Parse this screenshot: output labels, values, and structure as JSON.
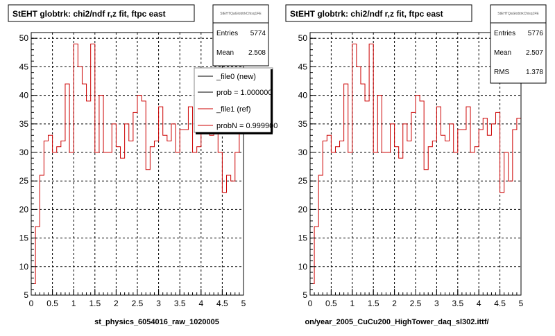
{
  "colors": {
    "axes": "#000000",
    "grid": "#000000",
    "new_hist": "#000000",
    "ref_hist": "#cc0000",
    "background": "#ffffff"
  },
  "left_panel": {
    "title": "StEHT globtrk: chi2/ndf r,z fit, ftpc east",
    "stats": {
      "name": "StEHTQaGlobtrkChisq1FE",
      "rows": [
        {
          "label": "Entries",
          "value": "5774"
        },
        {
          "label": "Mean",
          "value": "2.508"
        }
      ]
    },
    "legend": [
      {
        "label": "_file0 (new)",
        "color": "#000000"
      },
      {
        "label": "prob = 1.000000",
        "color": "#000000"
      },
      {
        "label": "_file1 (ref)",
        "color": "#cc0000"
      },
      {
        "label": "probN = 0.999900",
        "color": "#cc0000"
      }
    ],
    "footer": "st_physics_6054016_raw_1020005"
  },
  "right_panel": {
    "title": "StEHT globtrk: chi2/ndf r,z fit, ftpc east",
    "stats": {
      "name": "StEHTQaGlobtrkChisq1FE",
      "rows": [
        {
          "label": "Entries",
          "value": "5776"
        },
        {
          "label": "Mean",
          "value": "2.507"
        },
        {
          "label": "RMS",
          "value": "1.378"
        }
      ]
    },
    "footer": "on/year_2005_CuCu200_HighTower_daq_sl302.ittf/"
  },
  "chart_data": [
    {
      "type": "histogram",
      "title": "StEHT globtrk: chi2/ndf r,z fit, ftpc east",
      "xlim": [
        0,
        5
      ],
      "ylim": [
        5,
        51
      ],
      "x_ticks": [
        "0",
        "0.5",
        "1",
        "1.5",
        "2",
        "2.5",
        "3",
        "3.5",
        "4",
        "4.5",
        "5"
      ],
      "y_ticks": [
        "5",
        "10",
        "15",
        "20",
        "25",
        "30",
        "35",
        "40",
        "45",
        "50"
      ],
      "grid": true,
      "bin_width": 0.1,
      "bins_start": 0,
      "series": [
        {
          "name": "_file1 (ref)",
          "values": [
            7,
            17,
            26,
            32,
            33,
            30,
            31,
            32,
            42,
            30,
            49,
            45,
            42,
            39,
            49,
            30,
            40,
            30,
            30,
            35,
            31,
            29,
            35,
            32,
            37,
            40,
            39,
            27,
            31,
            32,
            38,
            33,
            32,
            35,
            30,
            34,
            34,
            38,
            30,
            31,
            34,
            36,
            33,
            35,
            30,
            23,
            26,
            25,
            30,
            35
          ]
        }
      ]
    },
    {
      "type": "histogram",
      "title": "StEHT globtrk: chi2/ndf r,z fit, ftpc east",
      "xlim": [
        0,
        5
      ],
      "ylim": [
        5,
        51
      ],
      "x_ticks": [
        "0",
        "0.5",
        "1",
        "1.5",
        "2",
        "2.5",
        "3",
        "3.5",
        "4",
        "4.5",
        "5"
      ],
      "y_ticks": [
        "5",
        "10",
        "15",
        "20",
        "25",
        "30",
        "35",
        "40",
        "45",
        "50"
      ],
      "grid": true,
      "bin_width": 0.1,
      "bins_start": 0,
      "series": [
        {
          "name": "_file1 (ref)",
          "values": [
            7,
            17,
            26,
            32,
            33,
            30,
            31,
            32,
            42,
            30,
            49,
            45,
            42,
            39,
            49,
            30,
            40,
            30,
            30,
            35,
            31,
            29,
            35,
            32,
            37,
            40,
            39,
            27,
            31,
            32,
            38,
            33,
            32,
            35,
            30,
            34,
            34,
            38,
            30,
            31,
            34,
            36,
            33,
            35,
            37,
            23,
            30,
            25,
            34,
            36
          ]
        }
      ]
    }
  ]
}
